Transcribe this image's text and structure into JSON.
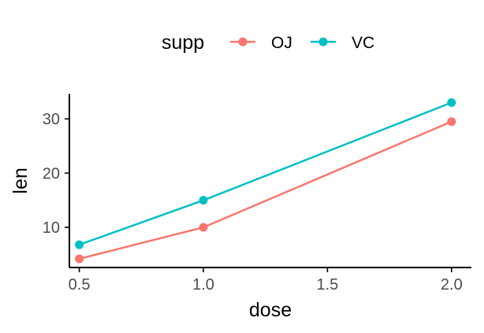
{
  "chart_data": {
    "type": "line",
    "x": [
      0.5,
      1.0,
      2.0
    ],
    "series": [
      {
        "name": "OJ",
        "color": "#F8766D",
        "values": [
          4.2,
          10.0,
          29.5
        ]
      },
      {
        "name": "VC",
        "color": "#00BFC4",
        "values": [
          6.8,
          15.0,
          33.0
        ]
      }
    ],
    "xlabel": "dose",
    "ylabel": "len",
    "xlim": [
      0.46,
      2.08
    ],
    "ylim": [
      2.6,
      34.6
    ],
    "xticks": [
      0.5,
      1.0,
      1.5,
      2.0
    ],
    "xtick_labels": [
      "0.5",
      "1.0",
      "1.5",
      "2.0"
    ],
    "yticks": [
      10,
      20,
      30
    ],
    "ytick_labels": [
      "10",
      "20",
      "30"
    ],
    "legend": {
      "title": "supp",
      "position": "top"
    },
    "grid": false
  }
}
